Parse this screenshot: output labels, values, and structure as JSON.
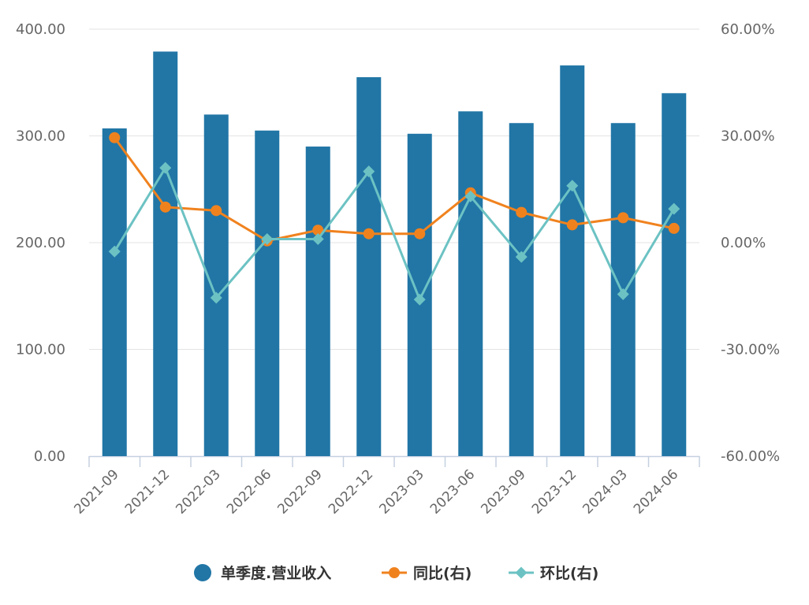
{
  "chart_data": {
    "type": "bar",
    "categories": [
      "2021-09",
      "2021-12",
      "2022-03",
      "2022-06",
      "2022-09",
      "2022-12",
      "2023-03",
      "2023-06",
      "2023-09",
      "2023-12",
      "2024-03",
      "2024-06"
    ],
    "series": [
      {
        "name": "单季度.营业收入",
        "type": "bar",
        "axis": "left",
        "color": "#2176a6",
        "values": [
          307,
          379,
          320,
          305,
          290,
          355,
          302,
          323,
          312,
          366,
          312,
          340
        ]
      },
      {
        "name": "同比(右)",
        "type": "line",
        "axis": "right",
        "color": "#f0821e",
        "marker": "circle",
        "values": [
          29.5,
          10.0,
          9.0,
          0.5,
          3.5,
          2.5,
          2.5,
          14.0,
          8.5,
          5.0,
          7.0,
          4.0
        ]
      },
      {
        "name": "环比(右)",
        "type": "line",
        "axis": "right",
        "color": "#6cc2c3",
        "marker": "diamond",
        "values": [
          -2.5,
          21.0,
          -15.5,
          1.0,
          1.0,
          20.0,
          -16.0,
          13.0,
          -4.0,
          16.0,
          -14.5,
          9.5
        ]
      }
    ],
    "y_left": {
      "ylim": [
        0,
        400
      ],
      "ticks": [
        0,
        100,
        200,
        300,
        400
      ],
      "tick_labels": [
        "0.00",
        "100.00",
        "200.00",
        "300.00",
        "400.00"
      ]
    },
    "y_right": {
      "ylim": [
        -60,
        60
      ],
      "ticks": [
        -60,
        -30,
        0,
        30,
        60
      ],
      "tick_labels": [
        "-60.00%",
        "-30.00%",
        "0.00%",
        "30.00%",
        "60.00%"
      ]
    },
    "grid": true,
    "legend_position": "bottom"
  }
}
